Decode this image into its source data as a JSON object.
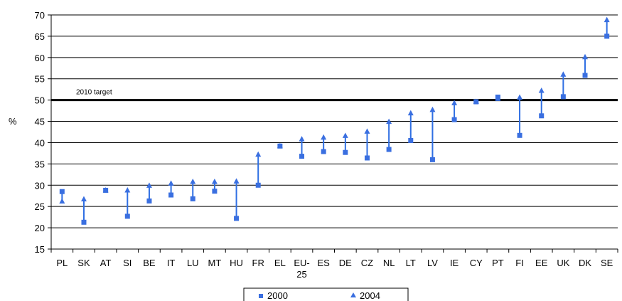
{
  "chart_data": {
    "type": "scatter",
    "ylabel": "%",
    "ylim": [
      15,
      70
    ],
    "yticks": [
      15,
      20,
      25,
      30,
      35,
      40,
      45,
      50,
      55,
      60,
      65,
      70
    ],
    "grid": true,
    "legend_position": "bottom-center",
    "categories": [
      "PL",
      "SK",
      "AT",
      "SI",
      "BE",
      "IT",
      "LU",
      "MT",
      "HU",
      "FR",
      "EL",
      "EU-\n25",
      "ES",
      "DE",
      "CZ",
      "NL",
      "LT",
      "LV",
      "IE",
      "CY",
      "PT",
      "FI",
      "EE",
      "UK",
      "DK",
      "SE"
    ],
    "series": [
      {
        "name": "2000",
        "marker": "square",
        "color": "#3A6FE0",
        "values": [
          28.5,
          21.3,
          28.8,
          22.7,
          26.3,
          27.7,
          26.8,
          28.6,
          22.2,
          30.0,
          39.2,
          36.8,
          37.9,
          37.7,
          36.4,
          38.4,
          40.5,
          36.0,
          45.4,
          49.6,
          50.7,
          41.7,
          46.3,
          50.8,
          55.8,
          65.0
        ]
      },
      {
        "name": "2004",
        "marker": "triangle",
        "color": "#3A6FE0",
        "values": [
          26.2,
          26.7,
          28.8,
          28.8,
          29.9,
          30.4,
          30.8,
          30.8,
          30.9,
          37.2,
          39.2,
          40.8,
          41.2,
          41.6,
          42.6,
          44.9,
          46.9,
          47.7,
          49.3,
          49.6,
          50.3,
          50.6,
          52.2,
          56.0,
          60.1,
          68.8
        ]
      }
    ],
    "reference_line": {
      "value": 50,
      "label": "2010  target"
    },
    "colors": {
      "marker": "#3A6FE0",
      "stem": "#2F6FE3",
      "grid": "#000000",
      "target": "#000000"
    }
  }
}
